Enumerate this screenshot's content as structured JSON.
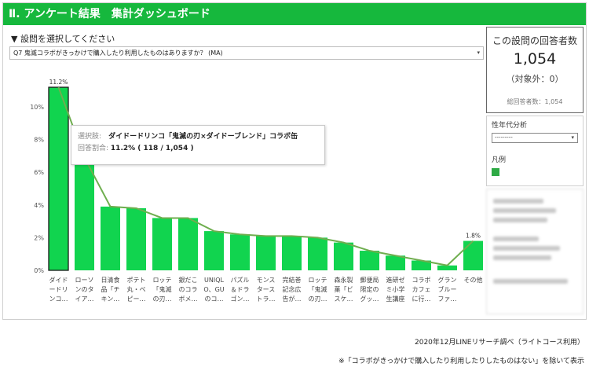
{
  "header": {
    "title": "Ⅱ. アンケート結果　集計ダッシュボード"
  },
  "question": {
    "label": "▼ 設問を選択してください",
    "selected": "Q7 鬼滅コラボがきっかけで購入したり利用したものはありますか？ (MA)",
    "caret": "▾"
  },
  "respondents": {
    "title": "この設問の回答者数",
    "count": "1,054",
    "excluded": "（対象外：0）",
    "total": "総回答者数：1,054"
  },
  "demographic": {
    "label": "性年代分析",
    "selected": "---------",
    "caret": "▾",
    "legend_label": "凡例",
    "legend_color": "#2eaa45"
  },
  "tooltip": {
    "k1": "選択肢:",
    "v1": "ダイドードリンコ「鬼滅の刃×ダイドーブレンド」コラボ缶",
    "k2": "回答割合:",
    "v2": "11.2% ( 118 / 1,054 )"
  },
  "chart_data": {
    "type": "bar",
    "y_ticks": [
      "0%",
      "2%",
      "4%",
      "6%",
      "8%",
      "10%"
    ],
    "ylim": [
      0,
      12
    ],
    "categories": [
      [
        "ダイド",
        "ードリ",
        "ンコ…"
      ],
      [
        "ローソ",
        "ンのタ",
        "イア…"
      ],
      [
        "日清食",
        "品「チ",
        "キン…"
      ],
      [
        "ポテト",
        "丸・ペ",
        "ピー…"
      ],
      [
        "ロッテ",
        "「鬼滅",
        "の刃…"
      ],
      [
        "銀だこ",
        "のコラ",
        "ボメ…"
      ],
      [
        "UNIQL",
        "O、GU",
        "のコ…"
      ],
      [
        "パズル",
        "＆ドラ",
        "ゴン…"
      ],
      [
        "モンス",
        "タース",
        "トラ…"
      ],
      [
        "完結巻",
        "記念広",
        "告が…"
      ],
      [
        "ロッテ",
        "「鬼滅",
        "の刃…"
      ],
      [
        "森永製",
        "菓「ビ",
        "スケ…"
      ],
      [
        "郵便局",
        "限定の",
        "グッ…"
      ],
      [
        "進研ゼ",
        "ミ小学",
        "生講座"
      ],
      [
        "コラボ",
        "カフェ",
        "に行…"
      ],
      [
        "グラン",
        "ブルー",
        "ファ…"
      ],
      [
        "その他",
        "",
        ""
      ]
    ],
    "values": [
      11.2,
      6.9,
      3.9,
      3.8,
      3.2,
      3.2,
      2.4,
      2.2,
      2.1,
      2.1,
      2.0,
      1.7,
      1.2,
      0.9,
      0.6,
      0.3,
      1.8
    ],
    "line_values": [
      11.2,
      6.9,
      3.9,
      3.8,
      3.2,
      3.2,
      2.4,
      2.2,
      2.1,
      2.1,
      2.0,
      1.7,
      1.2,
      0.9,
      0.6,
      0.3,
      1.8
    ],
    "data_labels": {
      "0": "11.2%",
      "16": "1.8%"
    },
    "bar_color": "#11d44f",
    "highlight_stroke": "#1a1a1a",
    "line_color": "#6fae4f",
    "grid": true
  },
  "footnotes": {
    "source": "2020年12月LINEリサーチ調べ（ライトコース利用）",
    "note": "※「コラボがきっかけで購入したり利用したりしたものはない」を除いて表示"
  }
}
